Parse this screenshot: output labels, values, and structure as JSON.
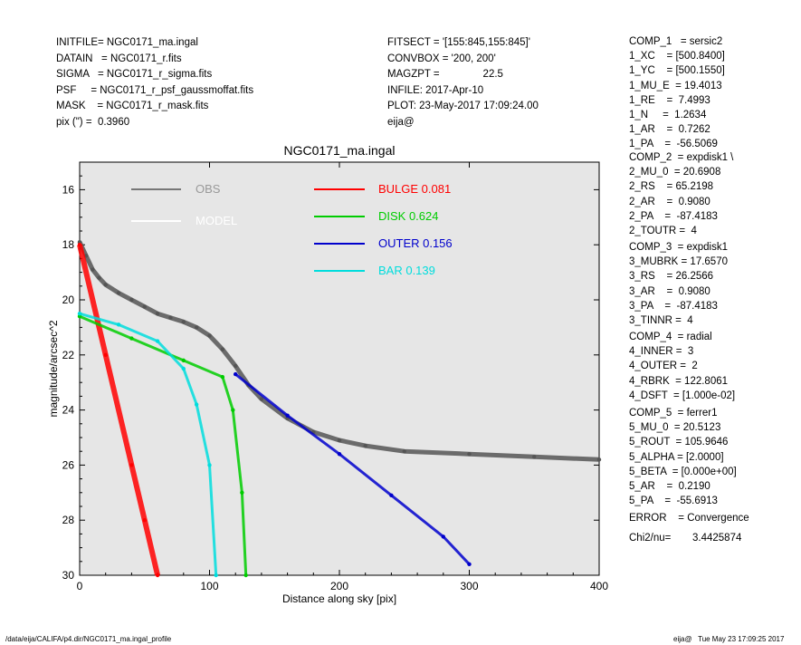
{
  "header_left": [
    "INITFILE= NGC0171_ma.ingal",
    "DATAIN   = NGC0171_r.fits",
    "SIGMA   = NGC0171_r_sigma.fits",
    "PSF     = NGC0171_r_psf_gaussmoffat.fits",
    "MASK    = NGC0171_r_mask.fits",
    "pix (\") =  0.3960"
  ],
  "header_mid": [
    "FITSECT = '[155:845,155:845]'",
    "CONVBOX = '200, 200'",
    "MAGZPT =               22.5",
    "INFILE: 2017-Apr-10",
    "PLOT: 23-May-2017 17:09:24.00",
    "eija@"
  ],
  "components": [
    {
      "lines": [
        "COMP_1   = sersic2",
        "1_XC    = [500.8400]",
        "1_YC    = [500.1550]",
        "1_MU_E  = 19.4013",
        "1_RE    =  7.4993",
        "1_N     =  1.2634",
        "1_AR    =  0.7262",
        "1_PA    =  -56.5069"
      ]
    },
    {
      "lines": [
        "COMP_2  = expdisk1 \\",
        "2_MU_0  = 20.6908",
        "2_RS    = 65.2198",
        "2_AR    =  0.9080",
        "2_PA    =  -87.4183",
        "2_TOUTR =  4"
      ]
    },
    {
      "lines": [
        "COMP_3  = expdisk1",
        "3_MUBRK = 17.6570",
        "3_RS    = 26.2566",
        "3_AR    =  0.9080",
        "3_PA    =  -87.4183",
        "3_TINNR =  4"
      ]
    },
    {
      "lines": [
        "COMP_4  = radial",
        "4_INNER =  3",
        "4_OUTER =  2",
        "4_RBRK  = 122.8061",
        "4_DSFT  = [1.000e-02]"
      ]
    },
    {
      "lines": [
        "COMP_5  = ferrer1",
        "5_MU_0  = 20.5123",
        "5_ROUT  = 105.9646",
        "5_ALPHA = [2.0000]",
        "5_BETA  = [0.000e+00]",
        "5_AR    =  0.2190",
        "5_PA    =  -55.6913"
      ]
    }
  ],
  "error_line": "ERROR    = Convergence",
  "chi2_label": "Chi2/nu=",
  "chi2_value": "3.4425874",
  "footer_left": "/data/eija/CALIFA/p4.dir/NGC0171_ma.ingal_profile",
  "footer_right": "eija@   Tue May 23 17:09:25 2017",
  "chart_data": {
    "type": "scatter",
    "title": "NGC0171_ma.ingal",
    "xlabel": "Distance along sky [pix]",
    "ylabel": "magnitude/arcsec^2",
    "xlim": [
      0,
      400
    ],
    "ylim": [
      30,
      15
    ],
    "y_inverted": true,
    "xticks": [
      0,
      100,
      200,
      300,
      400
    ],
    "yticks": [
      16,
      18,
      20,
      22,
      24,
      26,
      28,
      30
    ],
    "background": "#e6e6e6",
    "legend": [
      {
        "name": "OBS",
        "value": "",
        "color": "#777777",
        "text_color": "#999999"
      },
      {
        "name": "MODEL",
        "value": "",
        "color": "#ffffff",
        "text_color": "#ffffff"
      },
      {
        "name": "BULGE",
        "value": "0.081",
        "color": "#ff0000",
        "text_color": "#ff0000"
      },
      {
        "name": "DISK",
        "value": "0.624",
        "color": "#00cc00",
        "text_color": "#00cc00"
      },
      {
        "name": "OUTER",
        "value": "0.156",
        "color": "#0000cc",
        "text_color": "#0000cc"
      },
      {
        "name": "BAR",
        "value": "0.139",
        "color": "#00dddd",
        "text_color": "#00dddd"
      }
    ],
    "series": [
      {
        "name": "OBS",
        "color": "#555555",
        "points": [
          [
            0,
            17.9
          ],
          [
            5,
            18.4
          ],
          [
            10,
            18.9
          ],
          [
            15,
            19.2
          ],
          [
            20,
            19.45
          ],
          [
            30,
            19.75
          ],
          [
            40,
            20.0
          ],
          [
            50,
            20.25
          ],
          [
            60,
            20.5
          ],
          [
            70,
            20.65
          ],
          [
            80,
            20.8
          ],
          [
            90,
            21.0
          ],
          [
            100,
            21.3
          ],
          [
            110,
            21.8
          ],
          [
            120,
            22.4
          ],
          [
            130,
            23.1
          ],
          [
            140,
            23.6
          ],
          [
            160,
            24.3
          ],
          [
            180,
            24.8
          ],
          [
            200,
            25.1
          ],
          [
            220,
            25.3
          ],
          [
            250,
            25.5
          ],
          [
            300,
            25.6
          ],
          [
            350,
            25.7
          ],
          [
            400,
            25.8
          ]
        ]
      },
      {
        "name": "BULGE",
        "color": "#ff0000",
        "points": [
          [
            0,
            18.0
          ],
          [
            20,
            22.0
          ],
          [
            40,
            26.0
          ],
          [
            50,
            28.0
          ],
          [
            60,
            30.0
          ]
        ]
      },
      {
        "name": "DISK",
        "color": "#00cc00",
        "points": [
          [
            0,
            20.6
          ],
          [
            40,
            21.4
          ],
          [
            80,
            22.2
          ],
          [
            110,
            22.8
          ],
          [
            118,
            24.0
          ],
          [
            125,
            27.0
          ],
          [
            128,
            30.0
          ]
        ]
      },
      {
        "name": "OUTER",
        "color": "#0000cc",
        "points": [
          [
            120,
            22.7
          ],
          [
            160,
            24.2
          ],
          [
            200,
            25.6
          ],
          [
            240,
            27.1
          ],
          [
            280,
            28.6
          ],
          [
            300,
            29.6
          ]
        ]
      },
      {
        "name": "BAR",
        "color": "#00dddd",
        "points": [
          [
            0,
            20.5
          ],
          [
            30,
            20.9
          ],
          [
            60,
            21.5
          ],
          [
            80,
            22.5
          ],
          [
            90,
            23.8
          ],
          [
            100,
            26.0
          ],
          [
            105,
            30.0
          ]
        ]
      }
    ]
  }
}
